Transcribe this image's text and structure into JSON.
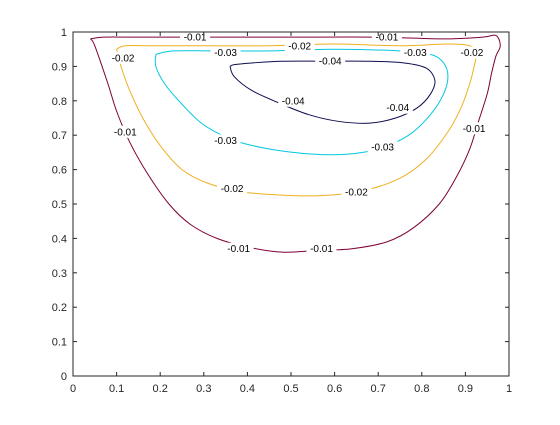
{
  "chart_data": {
    "type": "contour",
    "title": "",
    "xlabel": "",
    "ylabel": "",
    "xlim": [
      0,
      1
    ],
    "ylim": [
      0,
      1
    ],
    "x_ticks": [
      "0",
      "0.1",
      "0.2",
      "0.3",
      "0.4",
      "0.5",
      "0.6",
      "0.7",
      "0.8",
      "0.9",
      "1"
    ],
    "y_ticks": [
      "0",
      "0.1",
      "0.2",
      "0.3",
      "0.4",
      "0.5",
      "0.6",
      "0.7",
      "0.8",
      "0.9",
      "1"
    ],
    "grid": false,
    "legend": "none",
    "levels": [
      {
        "level": -0.01,
        "color": "#7e0038",
        "points": [
          [
            0.04,
            0.98
          ],
          [
            0.05,
            0.96
          ],
          [
            0.08,
            0.85
          ],
          [
            0.1,
            0.77
          ],
          [
            0.13,
            0.68
          ],
          [
            0.17,
            0.59
          ],
          [
            0.22,
            0.5
          ],
          [
            0.27,
            0.44
          ],
          [
            0.33,
            0.4
          ],
          [
            0.4,
            0.375
          ],
          [
            0.48,
            0.36
          ],
          [
            0.56,
            0.365
          ],
          [
            0.64,
            0.37
          ],
          [
            0.72,
            0.39
          ],
          [
            0.78,
            0.43
          ],
          [
            0.84,
            0.5
          ],
          [
            0.88,
            0.58
          ],
          [
            0.91,
            0.66
          ],
          [
            0.93,
            0.74
          ],
          [
            0.95,
            0.82
          ],
          [
            0.96,
            0.88
          ],
          [
            0.97,
            0.93
          ],
          [
            0.98,
            0.96
          ],
          [
            0.97,
            0.99
          ],
          [
            0.94,
            0.985
          ],
          [
            0.85,
            0.98
          ],
          [
            0.7,
            0.985
          ],
          [
            0.5,
            0.985
          ],
          [
            0.3,
            0.985
          ],
          [
            0.15,
            0.985
          ],
          [
            0.07,
            0.985
          ],
          [
            0.04,
            0.98
          ]
        ],
        "labels": [
          [
            0.12,
            0.71,
            "-0.01"
          ],
          [
            0.38,
            0.37,
            "-0.01"
          ],
          [
            0.57,
            0.37,
            "-0.01"
          ],
          [
            0.92,
            0.72,
            "-0.01"
          ],
          [
            0.72,
            0.985,
            "-0.01"
          ],
          [
            0.28,
            0.985,
            "-0.01"
          ]
        ]
      },
      {
        "level": -0.02,
        "color": "#edb120",
        "points": [
          [
            0.1,
            0.95
          ],
          [
            0.11,
            0.9
          ],
          [
            0.13,
            0.83
          ],
          [
            0.16,
            0.75
          ],
          [
            0.2,
            0.67
          ],
          [
            0.25,
            0.6
          ],
          [
            0.31,
            0.56
          ],
          [
            0.39,
            0.535
          ],
          [
            0.49,
            0.525
          ],
          [
            0.58,
            0.525
          ],
          [
            0.67,
            0.54
          ],
          [
            0.75,
            0.575
          ],
          [
            0.81,
            0.63
          ],
          [
            0.86,
            0.71
          ],
          [
            0.89,
            0.78
          ],
          [
            0.91,
            0.85
          ],
          [
            0.92,
            0.9
          ],
          [
            0.925,
            0.94
          ],
          [
            0.91,
            0.96
          ],
          [
            0.86,
            0.965
          ],
          [
            0.75,
            0.96
          ],
          [
            0.6,
            0.965
          ],
          [
            0.45,
            0.96
          ],
          [
            0.3,
            0.96
          ],
          [
            0.18,
            0.96
          ],
          [
            0.12,
            0.96
          ],
          [
            0.1,
            0.95
          ]
        ],
        "labels": [
          [
            0.115,
            0.925,
            "-0.02"
          ],
          [
            0.365,
            0.545,
            "-0.02"
          ],
          [
            0.65,
            0.535,
            "-0.02"
          ],
          [
            0.915,
            0.94,
            "-0.02"
          ],
          [
            0.52,
            0.96,
            "-0.02"
          ]
        ]
      },
      {
        "level": -0.03,
        "color": "#00c8e0",
        "points": [
          [
            0.19,
            0.935
          ],
          [
            0.19,
            0.9
          ],
          [
            0.21,
            0.85
          ],
          [
            0.25,
            0.79
          ],
          [
            0.3,
            0.73
          ],
          [
            0.37,
            0.685
          ],
          [
            0.45,
            0.66
          ],
          [
            0.55,
            0.645
          ],
          [
            0.63,
            0.645
          ],
          [
            0.7,
            0.66
          ],
          [
            0.77,
            0.7
          ],
          [
            0.82,
            0.76
          ],
          [
            0.85,
            0.82
          ],
          [
            0.86,
            0.87
          ],
          [
            0.85,
            0.91
          ],
          [
            0.82,
            0.935
          ],
          [
            0.75,
            0.945
          ],
          [
            0.6,
            0.95
          ],
          [
            0.45,
            0.945
          ],
          [
            0.32,
            0.945
          ],
          [
            0.23,
            0.945
          ],
          [
            0.19,
            0.935
          ]
        ],
        "labels": [
          [
            0.35,
            0.685,
            "-0.03"
          ],
          [
            0.71,
            0.665,
            "-0.03"
          ],
          [
            0.35,
            0.94,
            "-0.03"
          ],
          [
            0.785,
            0.94,
            "-0.03"
          ]
        ]
      },
      {
        "level": -0.04,
        "color": "#0d0d4f",
        "points": [
          [
            0.36,
            0.9
          ],
          [
            0.37,
            0.87
          ],
          [
            0.41,
            0.83
          ],
          [
            0.47,
            0.795
          ],
          [
            0.54,
            0.76
          ],
          [
            0.61,
            0.74
          ],
          [
            0.68,
            0.735
          ],
          [
            0.74,
            0.75
          ],
          [
            0.79,
            0.78
          ],
          [
            0.82,
            0.82
          ],
          [
            0.83,
            0.86
          ],
          [
            0.81,
            0.895
          ],
          [
            0.76,
            0.91
          ],
          [
            0.68,
            0.915
          ],
          [
            0.58,
            0.915
          ],
          [
            0.48,
            0.915
          ],
          [
            0.41,
            0.91
          ],
          [
            0.37,
            0.905
          ],
          [
            0.36,
            0.9
          ]
        ],
        "labels": [
          [
            0.505,
            0.8,
            "-0.04"
          ],
          [
            0.745,
            0.78,
            "-0.04"
          ],
          [
            0.59,
            0.915,
            "-0.04"
          ]
        ]
      }
    ]
  }
}
